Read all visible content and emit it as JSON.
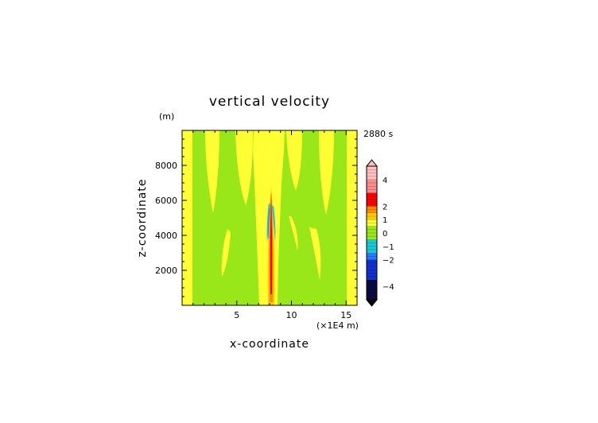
{
  "chart_data": {
    "type": "heatmap",
    "title": "vertical velocity",
    "time_label": "2880 s",
    "xlabel": "x-coordinate",
    "ylabel": "z-coordinate",
    "x_unit": "(×1E4 m)",
    "y_unit": "(m)",
    "xlim": [
      0,
      16
    ],
    "ylim": [
      0,
      10000
    ],
    "x_ticks": [
      5,
      10,
      15
    ],
    "y_ticks": [
      2000,
      4000,
      6000,
      8000
    ],
    "colorbar": {
      "tick_labels": [
        "4",
        "2",
        "1",
        "0",
        "−1",
        "−2",
        "−4"
      ],
      "tick_values": [
        4,
        2,
        1,
        0,
        -1,
        -2,
        -4
      ],
      "range": [
        -5,
        5
      ],
      "colors": {
        "neg_deep": "#0a0a40",
        "neg_blue": "#1030d0",
        "neg_mid": "#2878ff",
        "neg_cyan": "#19c8d2",
        "zero_green": "#99e619",
        "pos_yellow": "#ffff33",
        "pos_gold": "#ffcc00",
        "pos_orange": "#ff8c00",
        "pos_red": "#ff0000",
        "pos_pink": "#ff8c8c",
        "pos_light": "#ffbfbf"
      }
    },
    "field_description_colors": {
      "background": "#99e619",
      "positive_band": "#ffff33",
      "updraft_core": "#ff0000",
      "downdraft": "#19c8d2"
    }
  }
}
